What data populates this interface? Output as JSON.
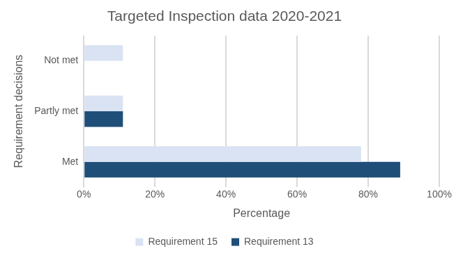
{
  "chart_data": {
    "type": "bar",
    "orientation": "horizontal",
    "title": "Targeted Inspection data 2020-2021",
    "x_label": "Percentage",
    "y_label": "Requirement decisions",
    "categories": [
      "Met",
      "Partly met",
      "Not met"
    ],
    "series": [
      {
        "name": "Requirement 15",
        "color": "#dae3f3",
        "values": [
          78,
          11,
          11
        ]
      },
      {
        "name": "Requirement 13",
        "color": "#1f4e79",
        "values": [
          89,
          11,
          0
        ]
      }
    ],
    "xlim": [
      0,
      100
    ],
    "xticks": [
      {
        "value": 0,
        "label": "0%"
      },
      {
        "value": 20,
        "label": "20%"
      },
      {
        "value": 40,
        "label": "40%"
      },
      {
        "value": 60,
        "label": "60%"
      },
      {
        "value": 80,
        "label": "80%"
      },
      {
        "value": 100,
        "label": "100%"
      }
    ],
    "grid": true,
    "legend": "bottom"
  }
}
